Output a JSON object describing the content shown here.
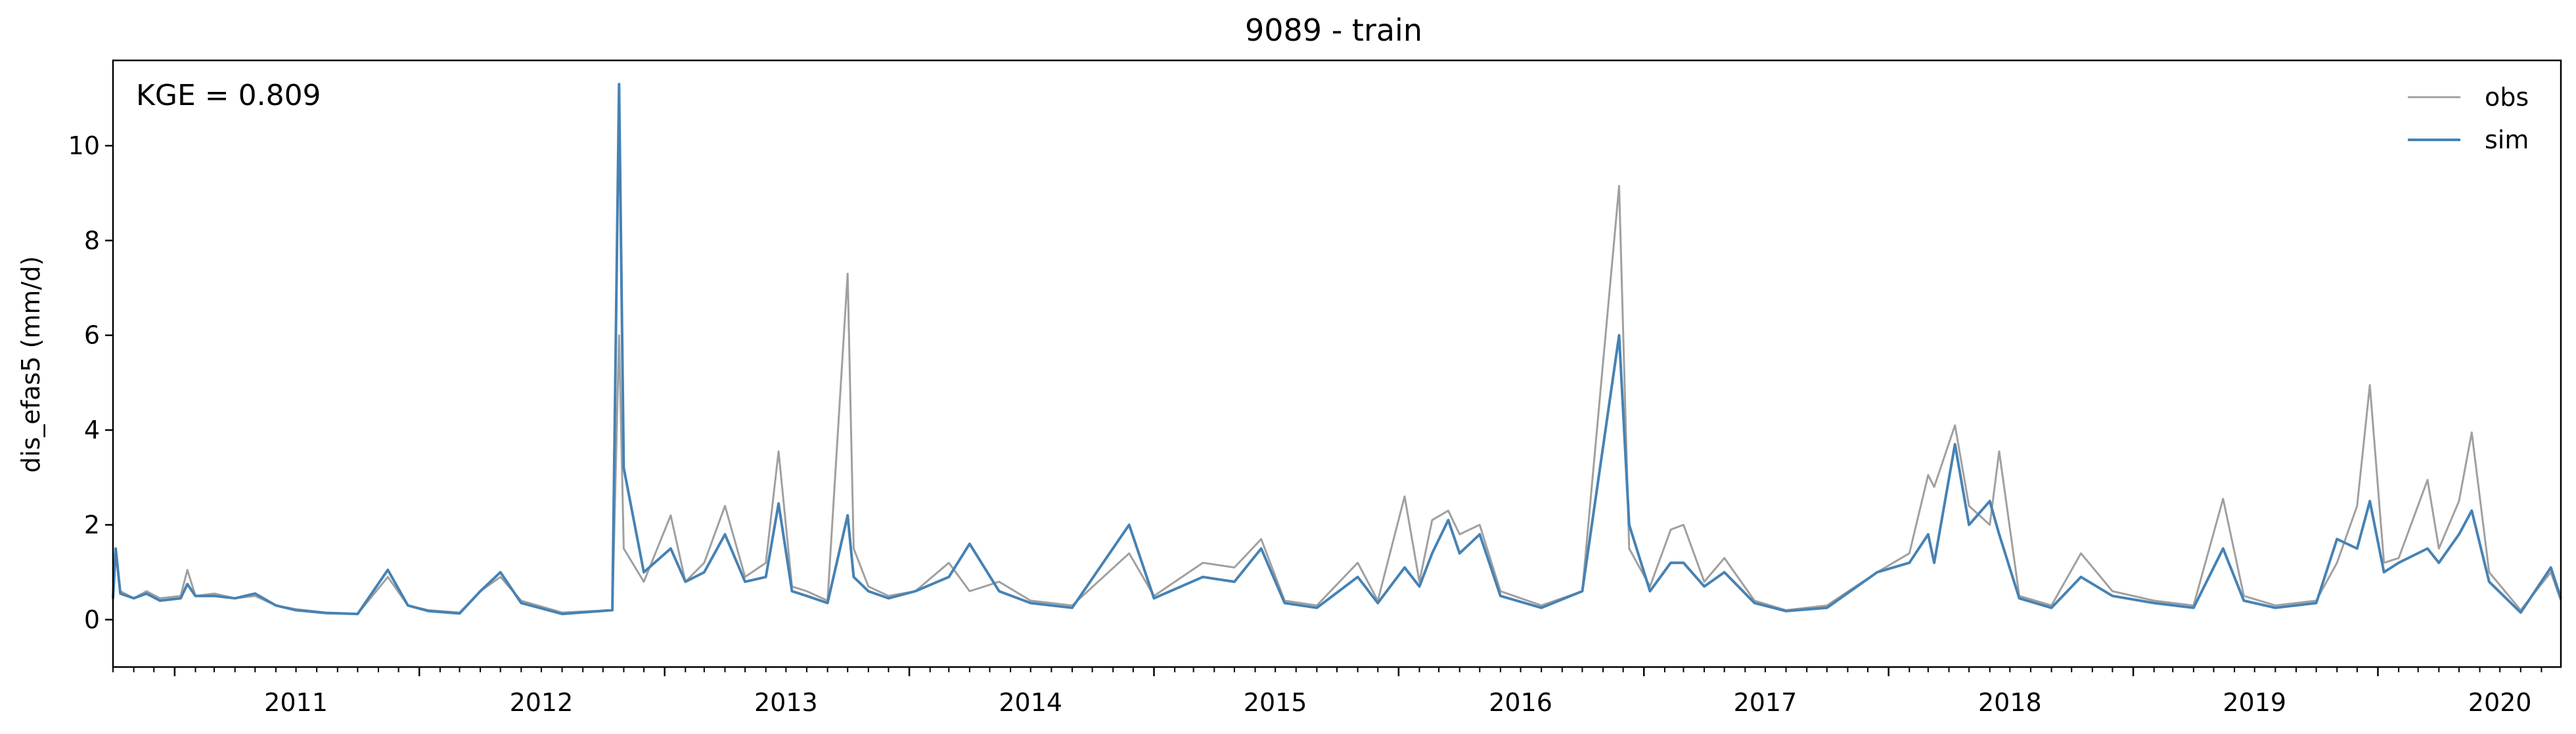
{
  "chart_data": {
    "type": "line",
    "title": "9089 - train",
    "xlabel": "",
    "ylabel": "dis_efas5 (mm/d)",
    "annotation": "KGE = 0.809",
    "x_is_date": true,
    "xlim": [
      "2010-10-01",
      "2020-09-30"
    ],
    "ylim": [
      -1,
      11.8
    ],
    "x_ticks": [
      "2011",
      "2012",
      "2013",
      "2014",
      "2015",
      "2016",
      "2017",
      "2018",
      "2019",
      "2020"
    ],
    "y_ticks": [
      0,
      2,
      4,
      6,
      8,
      10
    ],
    "y_tick_labels": [
      "0",
      "2",
      "4",
      "6",
      "8",
      "10"
    ],
    "grid": false,
    "legend_position": "top-right",
    "series": [
      {
        "name": "obs",
        "color": "#a0a0a0",
        "points": [
          [
            "2010-10-01",
            0.4
          ],
          [
            "2010-10-05",
            1.4
          ],
          [
            "2010-10-12",
            0.6
          ],
          [
            "2010-11-01",
            0.45
          ],
          [
            "2010-11-20",
            0.6
          ],
          [
            "2010-12-10",
            0.45
          ],
          [
            "2011-01-10",
            0.5
          ],
          [
            "2011-01-20",
            1.05
          ],
          [
            "2011-02-01",
            0.5
          ],
          [
            "2011-03-01",
            0.55
          ],
          [
            "2011-04-01",
            0.45
          ],
          [
            "2011-05-01",
            0.5
          ],
          [
            "2011-06-01",
            0.3
          ],
          [
            "2011-07-01",
            0.22
          ],
          [
            "2011-08-15",
            0.15
          ],
          [
            "2011-10-01",
            0.12
          ],
          [
            "2011-11-15",
            0.9
          ],
          [
            "2011-12-15",
            0.3
          ],
          [
            "2012-01-15",
            0.2
          ],
          [
            "2012-03-01",
            0.15
          ],
          [
            "2012-04-01",
            0.6
          ],
          [
            "2012-05-01",
            0.9
          ],
          [
            "2012-06-01",
            0.4
          ],
          [
            "2012-08-01",
            0.15
          ],
          [
            "2012-10-15",
            0.2
          ],
          [
            "2012-10-25",
            6.0
          ],
          [
            "2012-11-01",
            1.5
          ],
          [
            "2012-12-01",
            0.8
          ],
          [
            "2013-01-10",
            2.2
          ],
          [
            "2013-02-01",
            0.8
          ],
          [
            "2013-03-01",
            1.2
          ],
          [
            "2013-04-01",
            2.4
          ],
          [
            "2013-05-01",
            0.9
          ],
          [
            "2013-06-01",
            1.2
          ],
          [
            "2013-06-20",
            3.55
          ],
          [
            "2013-07-10",
            0.7
          ],
          [
            "2013-08-01",
            0.6
          ],
          [
            "2013-09-01",
            0.4
          ],
          [
            "2013-10-01",
            7.3
          ],
          [
            "2013-10-10",
            1.5
          ],
          [
            "2013-11-01",
            0.7
          ],
          [
            "2013-12-01",
            0.5
          ],
          [
            "2014-01-10",
            0.6
          ],
          [
            "2014-03-01",
            1.2
          ],
          [
            "2014-04-01",
            0.6
          ],
          [
            "2014-05-15",
            0.8
          ],
          [
            "2014-07-01",
            0.4
          ],
          [
            "2014-09-01",
            0.3
          ],
          [
            "2014-11-25",
            1.4
          ],
          [
            "2015-01-01",
            0.5
          ],
          [
            "2015-03-15",
            1.2
          ],
          [
            "2015-05-01",
            1.1
          ],
          [
            "2015-06-10",
            1.7
          ],
          [
            "2015-07-15",
            0.4
          ],
          [
            "2015-09-01",
            0.3
          ],
          [
            "2015-11-01",
            1.2
          ],
          [
            "2015-12-01",
            0.4
          ],
          [
            "2016-01-10",
            2.6
          ],
          [
            "2016-02-01",
            0.8
          ],
          [
            "2016-02-20",
            2.1
          ],
          [
            "2016-03-15",
            2.3
          ],
          [
            "2016-04-01",
            1.8
          ],
          [
            "2016-05-01",
            2.0
          ],
          [
            "2016-06-01",
            0.6
          ],
          [
            "2016-08-01",
            0.3
          ],
          [
            "2016-10-01",
            0.6
          ],
          [
            "2016-11-25",
            9.15
          ],
          [
            "2016-12-10",
            1.5
          ],
          [
            "2017-01-10",
            0.7
          ],
          [
            "2017-02-10",
            1.9
          ],
          [
            "2017-03-01",
            2.0
          ],
          [
            "2017-04-01",
            0.8
          ],
          [
            "2017-05-01",
            1.3
          ],
          [
            "2017-06-15",
            0.4
          ],
          [
            "2017-08-01",
            0.2
          ],
          [
            "2017-10-01",
            0.3
          ],
          [
            "2017-12-15",
            1.0
          ],
          [
            "2018-02-01",
            1.4
          ],
          [
            "2018-03-01",
            3.05
          ],
          [
            "2018-03-10",
            2.8
          ],
          [
            "2018-04-10",
            4.1
          ],
          [
            "2018-05-01",
            2.4
          ],
          [
            "2018-06-01",
            2.0
          ],
          [
            "2018-06-15",
            3.55
          ],
          [
            "2018-07-15",
            0.5
          ],
          [
            "2018-09-01",
            0.3
          ],
          [
            "2018-10-15",
            1.4
          ],
          [
            "2018-12-01",
            0.6
          ],
          [
            "2019-02-01",
            0.4
          ],
          [
            "2019-04-01",
            0.3
          ],
          [
            "2019-05-15",
            2.55
          ],
          [
            "2019-06-15",
            0.5
          ],
          [
            "2019-08-01",
            0.3
          ],
          [
            "2019-10-01",
            0.4
          ],
          [
            "2019-11-01",
            1.2
          ],
          [
            "2019-12-01",
            2.4
          ],
          [
            "2019-12-20",
            4.95
          ],
          [
            "2020-01-10",
            1.2
          ],
          [
            "2020-02-01",
            1.3
          ],
          [
            "2020-03-15",
            2.95
          ],
          [
            "2020-04-01",
            1.5
          ],
          [
            "2020-05-01",
            2.5
          ],
          [
            "2020-05-20",
            3.95
          ],
          [
            "2020-06-15",
            1.0
          ],
          [
            "2020-08-01",
            0.2
          ],
          [
            "2020-09-15",
            1.0
          ],
          [
            "2020-09-30",
            0.4
          ]
        ]
      },
      {
        "name": "sim",
        "color": "#4682b4",
        "points": [
          [
            "2010-10-01",
            0.45
          ],
          [
            "2010-10-05",
            1.5
          ],
          [
            "2010-10-12",
            0.55
          ],
          [
            "2010-11-01",
            0.45
          ],
          [
            "2010-11-20",
            0.55
          ],
          [
            "2010-12-10",
            0.4
          ],
          [
            "2011-01-10",
            0.45
          ],
          [
            "2011-01-20",
            0.75
          ],
          [
            "2011-02-01",
            0.5
          ],
          [
            "2011-03-01",
            0.5
          ],
          [
            "2011-04-01",
            0.45
          ],
          [
            "2011-05-01",
            0.55
          ],
          [
            "2011-06-01",
            0.3
          ],
          [
            "2011-07-01",
            0.2
          ],
          [
            "2011-08-15",
            0.14
          ],
          [
            "2011-10-01",
            0.12
          ],
          [
            "2011-11-15",
            1.05
          ],
          [
            "2011-12-15",
            0.3
          ],
          [
            "2012-01-15",
            0.18
          ],
          [
            "2012-03-01",
            0.13
          ],
          [
            "2012-04-01",
            0.6
          ],
          [
            "2012-05-01",
            1.0
          ],
          [
            "2012-06-01",
            0.35
          ],
          [
            "2012-08-01",
            0.12
          ],
          [
            "2012-10-15",
            0.2
          ],
          [
            "2012-10-25",
            11.3
          ],
          [
            "2012-11-01",
            3.2
          ],
          [
            "2012-12-01",
            1.0
          ],
          [
            "2013-01-10",
            1.5
          ],
          [
            "2013-02-01",
            0.8
          ],
          [
            "2013-03-01",
            1.0
          ],
          [
            "2013-04-01",
            1.8
          ],
          [
            "2013-05-01",
            0.8
          ],
          [
            "2013-06-01",
            0.9
          ],
          [
            "2013-06-20",
            2.45
          ],
          [
            "2013-07-10",
            0.6
          ],
          [
            "2013-08-01",
            0.5
          ],
          [
            "2013-09-01",
            0.35
          ],
          [
            "2013-10-01",
            2.2
          ],
          [
            "2013-10-10",
            0.9
          ],
          [
            "2013-11-01",
            0.6
          ],
          [
            "2013-12-01",
            0.45
          ],
          [
            "2014-01-10",
            0.6
          ],
          [
            "2014-03-01",
            0.9
          ],
          [
            "2014-04-01",
            1.6
          ],
          [
            "2014-05-15",
            0.6
          ],
          [
            "2014-07-01",
            0.35
          ],
          [
            "2014-09-01",
            0.25
          ],
          [
            "2014-11-25",
            2.0
          ],
          [
            "2015-01-01",
            0.45
          ],
          [
            "2015-03-15",
            0.9
          ],
          [
            "2015-05-01",
            0.8
          ],
          [
            "2015-06-10",
            1.5
          ],
          [
            "2015-07-15",
            0.35
          ],
          [
            "2015-09-01",
            0.25
          ],
          [
            "2015-11-01",
            0.9
          ],
          [
            "2015-12-01",
            0.35
          ],
          [
            "2016-01-10",
            1.1
          ],
          [
            "2016-02-01",
            0.7
          ],
          [
            "2016-02-20",
            1.4
          ],
          [
            "2016-03-15",
            2.1
          ],
          [
            "2016-04-01",
            1.4
          ],
          [
            "2016-05-01",
            1.8
          ],
          [
            "2016-06-01",
            0.5
          ],
          [
            "2016-08-01",
            0.25
          ],
          [
            "2016-10-01",
            0.6
          ],
          [
            "2016-11-25",
            6.0
          ],
          [
            "2016-12-10",
            2.0
          ],
          [
            "2017-01-10",
            0.6
          ],
          [
            "2017-02-10",
            1.2
          ],
          [
            "2017-03-01",
            1.2
          ],
          [
            "2017-04-01",
            0.7
          ],
          [
            "2017-05-01",
            1.0
          ],
          [
            "2017-06-15",
            0.35
          ],
          [
            "2017-08-01",
            0.18
          ],
          [
            "2017-10-01",
            0.25
          ],
          [
            "2017-12-15",
            1.0
          ],
          [
            "2018-02-01",
            1.2
          ],
          [
            "2018-03-01",
            1.8
          ],
          [
            "2018-03-10",
            1.2
          ],
          [
            "2018-04-10",
            3.7
          ],
          [
            "2018-05-01",
            2.0
          ],
          [
            "2018-06-01",
            2.5
          ],
          [
            "2018-06-15",
            1.8
          ],
          [
            "2018-07-15",
            0.45
          ],
          [
            "2018-09-01",
            0.25
          ],
          [
            "2018-10-15",
            0.9
          ],
          [
            "2018-12-01",
            0.5
          ],
          [
            "2019-02-01",
            0.35
          ],
          [
            "2019-04-01",
            0.25
          ],
          [
            "2019-05-15",
            1.5
          ],
          [
            "2019-06-15",
            0.4
          ],
          [
            "2019-08-01",
            0.25
          ],
          [
            "2019-10-01",
            0.35
          ],
          [
            "2019-11-01",
            1.7
          ],
          [
            "2019-12-01",
            1.5
          ],
          [
            "2019-12-20",
            2.5
          ],
          [
            "2020-01-10",
            1.0
          ],
          [
            "2020-02-01",
            1.2
          ],
          [
            "2020-03-15",
            1.5
          ],
          [
            "2020-04-01",
            1.2
          ],
          [
            "2020-05-01",
            1.8
          ],
          [
            "2020-05-20",
            2.3
          ],
          [
            "2020-06-15",
            0.8
          ],
          [
            "2020-08-01",
            0.15
          ],
          [
            "2020-09-15",
            1.1
          ],
          [
            "2020-09-30",
            0.45
          ]
        ]
      }
    ]
  }
}
